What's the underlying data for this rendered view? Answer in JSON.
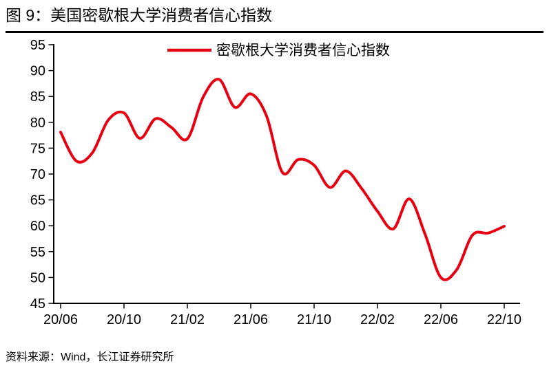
{
  "figure": {
    "title": "图 9：美国密歇根大学消费者信心指数",
    "source": "资料来源：Wind，长江证券研究所"
  },
  "chart_data": {
    "type": "line",
    "title": "图 9：美国密歇根大学消费者信心指数",
    "legend": [
      "密歇根大学消费者信心指数"
    ],
    "legend_position": "top-center",
    "grid": false,
    "ylim": [
      45,
      95
    ],
    "y_tick_step": 5,
    "x": [
      "20/06",
      "20/07",
      "20/08",
      "20/09",
      "20/10",
      "20/11",
      "20/12",
      "21/01",
      "21/02",
      "21/03",
      "21/04",
      "21/05",
      "21/06",
      "21/07",
      "21/08",
      "21/09",
      "21/10",
      "21/11",
      "21/12",
      "22/01",
      "22/02",
      "22/03",
      "22/04",
      "22/05",
      "22/06",
      "22/07",
      "22/08",
      "22/09",
      "22/10"
    ],
    "series": [
      {
        "name": "密歇根大学消费者信心指数",
        "color": "#e60012",
        "values": [
          78.1,
          72.5,
          74.1,
          80.4,
          81.8,
          76.9,
          80.7,
          79.0,
          76.8,
          84.9,
          88.3,
          82.9,
          85.5,
          81.2,
          70.3,
          72.8,
          71.7,
          67.4,
          70.6,
          67.2,
          62.8,
          59.4,
          65.2,
          58.4,
          50.0,
          51.5,
          58.2,
          58.6,
          59.9
        ]
      }
    ],
    "x_tick_labels": [
      "20/06",
      "20/10",
      "21/02",
      "21/06",
      "21/10",
      "22/02",
      "22/06",
      "22/10"
    ],
    "x_tick_indices": [
      0,
      4,
      8,
      12,
      16,
      20,
      24,
      28
    ],
    "colors": {
      "line": "#e60012",
      "axis": "#000000",
      "text": "#000000"
    }
  }
}
